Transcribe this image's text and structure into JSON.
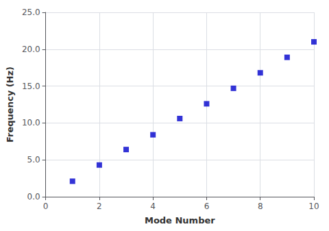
{
  "chart_data": {
    "type": "scatter",
    "x": [
      1,
      2,
      3,
      4,
      5,
      6,
      7,
      8,
      9,
      10
    ],
    "values": [
      2.1,
      4.3,
      6.4,
      8.4,
      10.6,
      12.6,
      14.7,
      16.8,
      18.9,
      21.0
    ],
    "xlabel": "Mode Number",
    "ylabel": "Frequency (Hz)",
    "xlim": [
      0,
      10
    ],
    "ylim": [
      0,
      25
    ],
    "xticks": [
      0,
      2,
      4,
      6,
      8,
      10
    ],
    "yticks": [
      {
        "value": 0,
        "label": "0.0"
      },
      {
        "value": 5,
        "label": "5.0"
      },
      {
        "value": 10,
        "label": "10.0"
      },
      {
        "value": 15,
        "label": "15.0"
      },
      {
        "value": 20,
        "label": "20.0"
      },
      {
        "value": 25,
        "label": "25.0"
      }
    ],
    "grid": true,
    "color": "#0000CC",
    "marker": "square"
  }
}
